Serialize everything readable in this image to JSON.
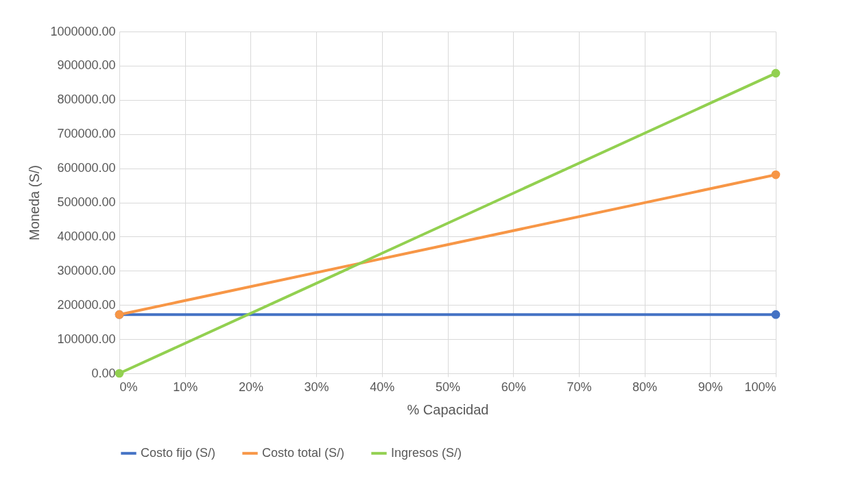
{
  "chart_data": {
    "type": "line",
    "xlabel": "% Capacidad",
    "ylabel": "Moneda (S/)",
    "x": [
      0,
      100
    ],
    "series": [
      {
        "name": "Costo fijo (S/)",
        "color": "#4472c4",
        "values": [
          172000,
          172000
        ]
      },
      {
        "name": "Costo total (S/)",
        "color": "#f79646",
        "values": [
          172000,
          581000
        ]
      },
      {
        "name": "Ingresos (S/)",
        "color": "#92d050",
        "values": [
          0,
          878000
        ]
      }
    ],
    "xlim": [
      0,
      100
    ],
    "xticks": [
      {
        "value": 0,
        "label": "0%"
      },
      {
        "value": 10,
        "label": "10%"
      },
      {
        "value": 20,
        "label": "20%"
      },
      {
        "value": 30,
        "label": "30%"
      },
      {
        "value": 40,
        "label": "40%"
      },
      {
        "value": 50,
        "label": "50%"
      },
      {
        "value": 60,
        "label": "60%"
      },
      {
        "value": 70,
        "label": "70%"
      },
      {
        "value": 80,
        "label": "80%"
      },
      {
        "value": 90,
        "label": "90%"
      },
      {
        "value": 100,
        "label": "100%"
      }
    ],
    "ylim": [
      0,
      1000000
    ],
    "yticks": [
      {
        "value": 0,
        "label": "0.00"
      },
      {
        "value": 100000,
        "label": "100000.00"
      },
      {
        "value": 200000,
        "label": "200000.00"
      },
      {
        "value": 300000,
        "label": "300000.00"
      },
      {
        "value": 400000,
        "label": "400000.00"
      },
      {
        "value": 500000,
        "label": "500000.00"
      },
      {
        "value": 600000,
        "label": "600000.00"
      },
      {
        "value": 700000,
        "label": "700000.00"
      },
      {
        "value": 800000,
        "label": "800000.00"
      },
      {
        "value": 900000,
        "label": "900000.00"
      },
      {
        "value": 1000000,
        "label": "1000000.00"
      }
    ],
    "grid": true,
    "legend": "bottom",
    "marker": "circle",
    "line_style": "solid"
  }
}
